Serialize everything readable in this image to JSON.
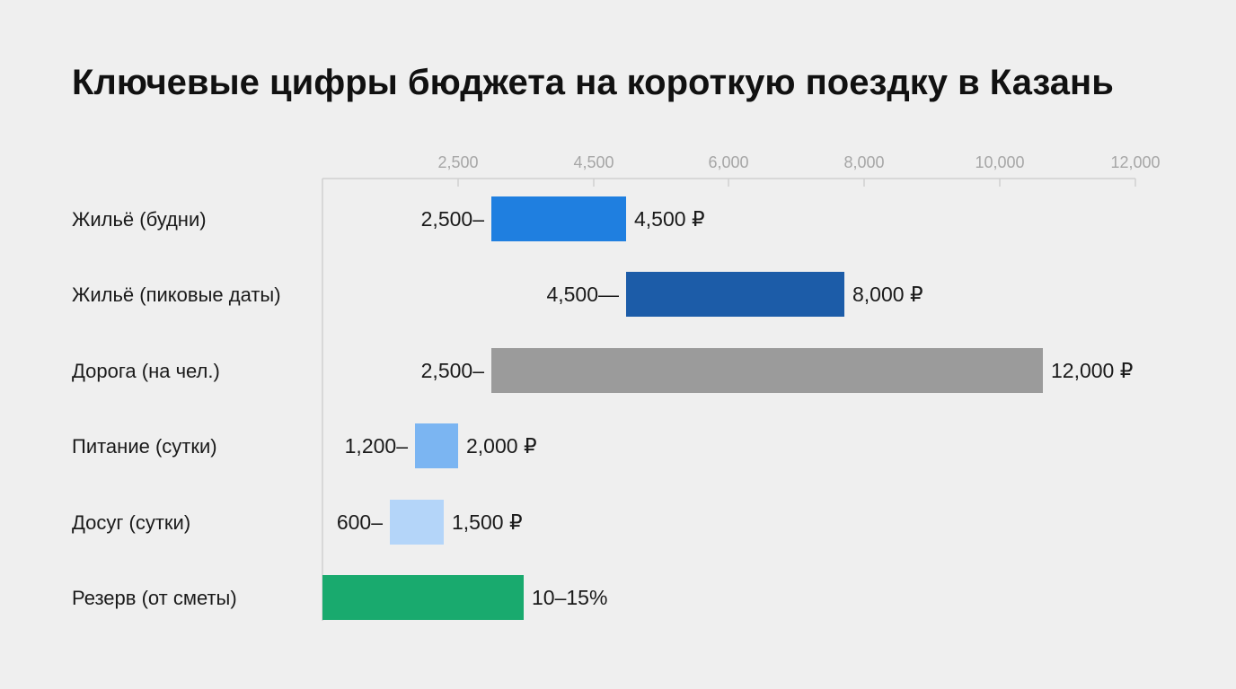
{
  "chart_data": {
    "type": "bar",
    "orientation": "horizontal",
    "title": "Ключевые цифры бюджета на короткую поездку в Казань",
    "xlabel": "",
    "ylabel": "",
    "axis_position": "top",
    "grid": false,
    "ticks": [
      {
        "value": 2500,
        "label": "2,500"
      },
      {
        "value": 4500,
        "label": "4,500"
      },
      {
        "value": 6000,
        "label": "6,000"
      },
      {
        "value": 8000,
        "label": "8,000"
      },
      {
        "value": 10000,
        "label": "10,000"
      },
      {
        "value": 12000,
        "label": "12,000"
      }
    ],
    "categories": [
      "Жильё (будни)",
      "Жильё (пиковые даты)",
      "Дорога (на чел.)",
      "Питание (сутки)",
      "Досуг (сутки)",
      "Резерв (от сметы)"
    ],
    "ranges": [
      {
        "low": 2500,
        "high": 4500,
        "low_label": "2,500–",
        "high_label": "4,500 ₽",
        "color": "#1f7fe0"
      },
      {
        "low": 4500,
        "high": 8000,
        "low_label": "4,500—",
        "high_label": "8,000 ₽",
        "color": "#1c5ca8"
      },
      {
        "low": 2500,
        "high": 12000,
        "low_label": "2,500–",
        "high_label": "12,000 ₽",
        "color": "#9b9b9b"
      },
      {
        "low": 1200,
        "high": 2000,
        "low_label": "1,200–",
        "high_label": "2,000 ₽",
        "color": "#7bb5f2"
      },
      {
        "low": 600,
        "high": 1500,
        "low_label": "600–",
        "high_label": "1,500 ₽",
        "color": "#b4d5f9"
      },
      {
        "low": 0,
        "high": 3000,
        "low_label": "",
        "high_label": "10–15%",
        "color": "#19aa6e"
      }
    ],
    "colors": {
      "axis": "#d0d0d0",
      "tick_text": "#a6a6a6",
      "text": "#1a1a1a"
    }
  }
}
